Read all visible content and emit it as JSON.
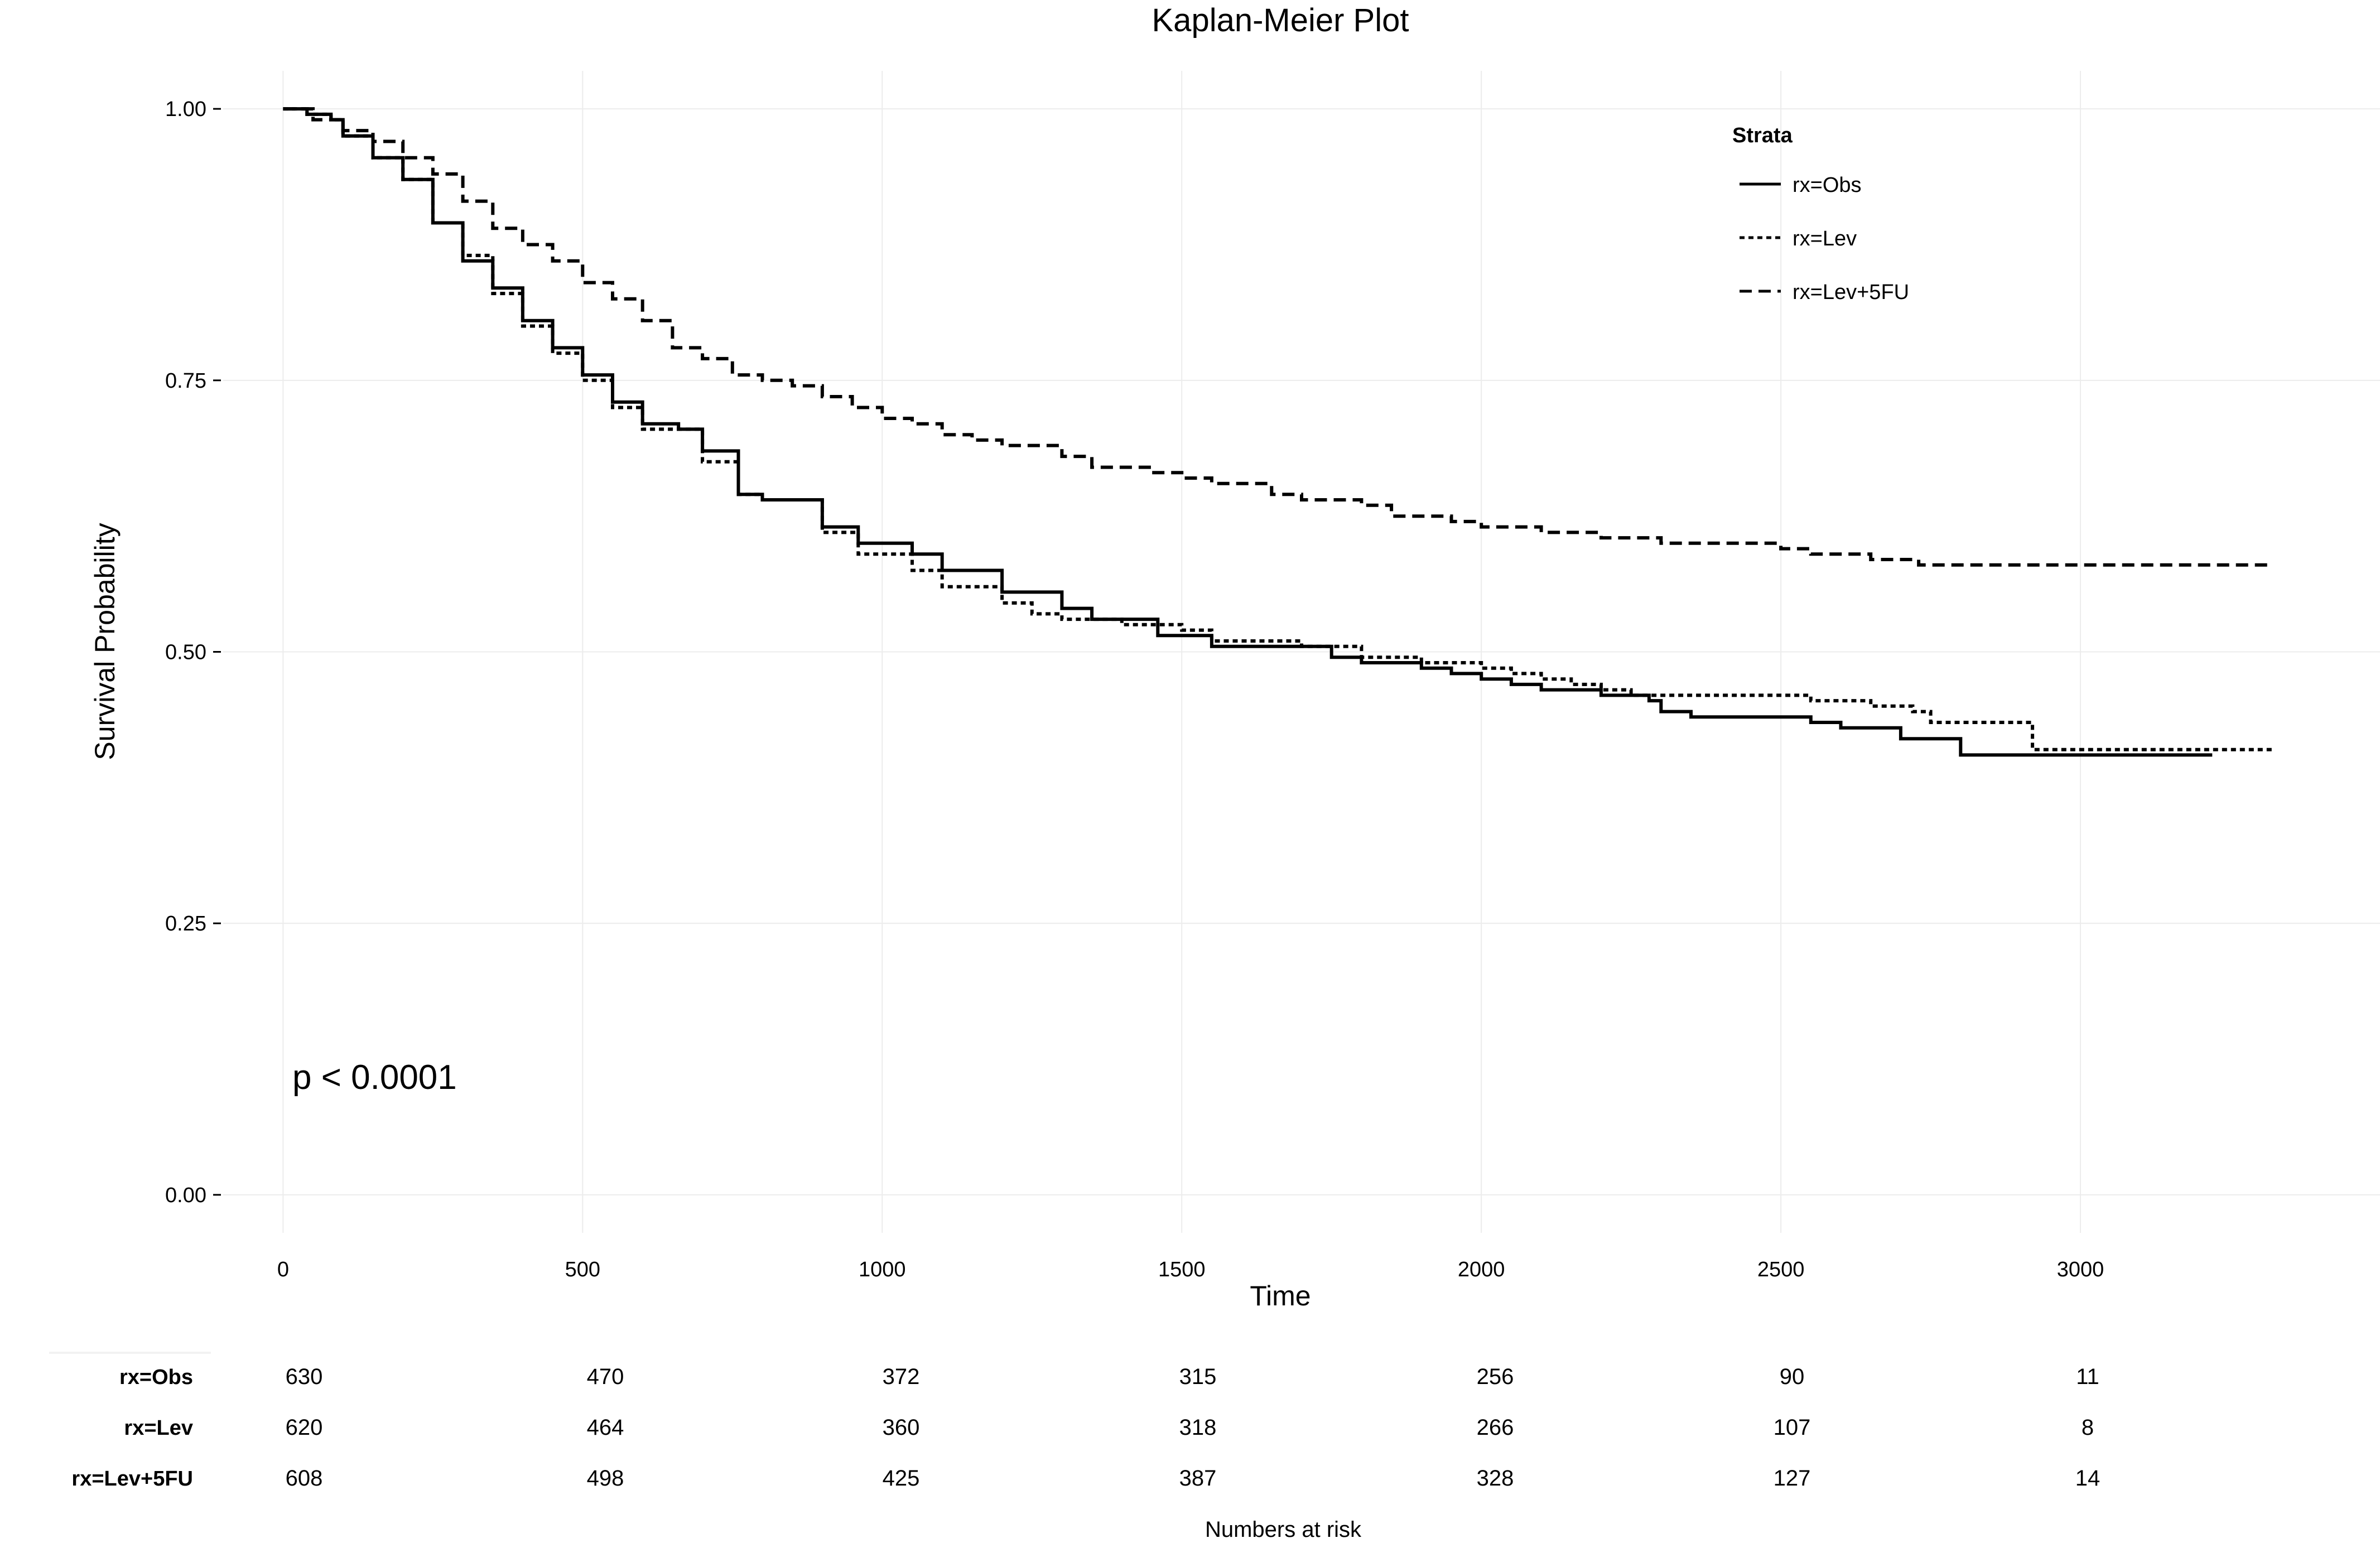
{
  "chart_data": {
    "type": "line",
    "title": "Kaplan-Meier Plot",
    "xlabel": "Time",
    "ylabel": "Survival Probability",
    "xlim": [
      -100,
      3500
    ],
    "ylim": [
      -0.035,
      1.035
    ],
    "xticks": [
      0,
      500,
      1000,
      1500,
      2000,
      2500,
      3000
    ],
    "xtick_labels": [
      "0",
      "500",
      "1000",
      "1500",
      "2000",
      "2500",
      "3000"
    ],
    "yticks": [
      0,
      0.25,
      0.5,
      0.75,
      1
    ],
    "ytick_labels": [
      "0.00",
      "0.25",
      "0.50",
      "0.75",
      "1.00"
    ],
    "grid": true,
    "legend_title": "Strata",
    "legend_position": "top-right",
    "annotation": "p < 0.0001",
    "series": [
      {
        "name": "rx=Obs",
        "line_style": "solid",
        "step": true,
        "points": [
          [
            0,
            1.0
          ],
          [
            40,
            0.995
          ],
          [
            80,
            0.99
          ],
          [
            100,
            0.975
          ],
          [
            150,
            0.955
          ],
          [
            200,
            0.935
          ],
          [
            250,
            0.895
          ],
          [
            300,
            0.86
          ],
          [
            350,
            0.835
          ],
          [
            400,
            0.805
          ],
          [
            450,
            0.78
          ],
          [
            500,
            0.755
          ],
          [
            550,
            0.73
          ],
          [
            600,
            0.71
          ],
          [
            660,
            0.705
          ],
          [
            700,
            0.685
          ],
          [
            760,
            0.645
          ],
          [
            800,
            0.64
          ],
          [
            900,
            0.615
          ],
          [
            960,
            0.6
          ],
          [
            1000,
            0.6
          ],
          [
            1050,
            0.59
          ],
          [
            1100,
            0.575
          ],
          [
            1200,
            0.555
          ],
          [
            1300,
            0.54
          ],
          [
            1350,
            0.53
          ],
          [
            1420,
            0.53
          ],
          [
            1460,
            0.515
          ],
          [
            1500,
            0.515
          ],
          [
            1550,
            0.505
          ],
          [
            1650,
            0.505
          ],
          [
            1750,
            0.495
          ],
          [
            1800,
            0.49
          ],
          [
            1900,
            0.485
          ],
          [
            1950,
            0.48
          ],
          [
            2000,
            0.475
          ],
          [
            2050,
            0.47
          ],
          [
            2100,
            0.465
          ],
          [
            2200,
            0.46
          ],
          [
            2280,
            0.455
          ],
          [
            2300,
            0.445
          ],
          [
            2350,
            0.44
          ],
          [
            2550,
            0.435
          ],
          [
            2600,
            0.43
          ],
          [
            2700,
            0.42
          ],
          [
            2790,
            0.42
          ],
          [
            2800,
            0.405
          ],
          [
            3220,
            0.405
          ]
        ]
      },
      {
        "name": "rx=Lev",
        "line_style": "dotted",
        "step": true,
        "points": [
          [
            0,
            1.0
          ],
          [
            40,
            0.995
          ],
          [
            80,
            0.99
          ],
          [
            100,
            0.975
          ],
          [
            150,
            0.955
          ],
          [
            200,
            0.935
          ],
          [
            250,
            0.895
          ],
          [
            300,
            0.865
          ],
          [
            350,
            0.83
          ],
          [
            400,
            0.8
          ],
          [
            450,
            0.775
          ],
          [
            500,
            0.75
          ],
          [
            550,
            0.725
          ],
          [
            600,
            0.705
          ],
          [
            700,
            0.675
          ],
          [
            760,
            0.645
          ],
          [
            800,
            0.64
          ],
          [
            900,
            0.61
          ],
          [
            960,
            0.59
          ],
          [
            1050,
            0.575
          ],
          [
            1100,
            0.56
          ],
          [
            1200,
            0.545
          ],
          [
            1250,
            0.535
          ],
          [
            1300,
            0.53
          ],
          [
            1400,
            0.525
          ],
          [
            1450,
            0.525
          ],
          [
            1500,
            0.52
          ],
          [
            1550,
            0.51
          ],
          [
            1700,
            0.505
          ],
          [
            1800,
            0.495
          ],
          [
            1900,
            0.49
          ],
          [
            2000,
            0.485
          ],
          [
            2050,
            0.48
          ],
          [
            2100,
            0.475
          ],
          [
            2150,
            0.47
          ],
          [
            2200,
            0.465
          ],
          [
            2250,
            0.46
          ],
          [
            2350,
            0.46
          ],
          [
            2450,
            0.46
          ],
          [
            2550,
            0.455
          ],
          [
            2650,
            0.45
          ],
          [
            2720,
            0.445
          ],
          [
            2750,
            0.435
          ],
          [
            2910,
            0.435
          ],
          [
            2920,
            0.41
          ],
          [
            3320,
            0.41
          ]
        ]
      },
      {
        "name": "rx=Lev+5FU",
        "line_style": "dashed",
        "step": true,
        "points": [
          [
            0,
            1.0
          ],
          [
            50,
            0.99
          ],
          [
            100,
            0.98
          ],
          [
            150,
            0.97
          ],
          [
            200,
            0.955
          ],
          [
            250,
            0.94
          ],
          [
            300,
            0.915
          ],
          [
            350,
            0.89
          ],
          [
            400,
            0.875
          ],
          [
            450,
            0.86
          ],
          [
            500,
            0.84
          ],
          [
            550,
            0.825
          ],
          [
            600,
            0.805
          ],
          [
            650,
            0.78
          ],
          [
            700,
            0.77
          ],
          [
            750,
            0.755
          ],
          [
            800,
            0.75
          ],
          [
            850,
            0.745
          ],
          [
            900,
            0.735
          ],
          [
            950,
            0.725
          ],
          [
            1000,
            0.715
          ],
          [
            1050,
            0.71
          ],
          [
            1100,
            0.7
          ],
          [
            1150,
            0.695
          ],
          [
            1200,
            0.69
          ],
          [
            1300,
            0.68
          ],
          [
            1350,
            0.67
          ],
          [
            1450,
            0.665
          ],
          [
            1500,
            0.66
          ],
          [
            1550,
            0.655
          ],
          [
            1650,
            0.645
          ],
          [
            1700,
            0.64
          ],
          [
            1800,
            0.635
          ],
          [
            1850,
            0.625
          ],
          [
            1950,
            0.62
          ],
          [
            2000,
            0.615
          ],
          [
            2100,
            0.61
          ],
          [
            2200,
            0.605
          ],
          [
            2300,
            0.6
          ],
          [
            2400,
            0.6
          ],
          [
            2500,
            0.595
          ],
          [
            2550,
            0.59
          ],
          [
            2650,
            0.585
          ],
          [
            2720,
            0.585
          ],
          [
            2730,
            0.58
          ],
          [
            3320,
            0.58
          ]
        ]
      }
    ]
  },
  "risk_table": {
    "caption": "Numbers at risk",
    "times": [
      0,
      500,
      1000,
      1500,
      2000,
      2500,
      3000
    ],
    "rows": [
      {
        "label": "rx=Obs",
        "values": [
          "630",
          "470",
          "372",
          "315",
          "256",
          "90",
          "11"
        ]
      },
      {
        "label": "rx=Lev",
        "values": [
          "620",
          "464",
          "360",
          "318",
          "266",
          "107",
          "8"
        ]
      },
      {
        "label": "rx=Lev+5FU",
        "values": [
          "608",
          "498",
          "425",
          "387",
          "328",
          "127",
          "14"
        ]
      }
    ]
  }
}
